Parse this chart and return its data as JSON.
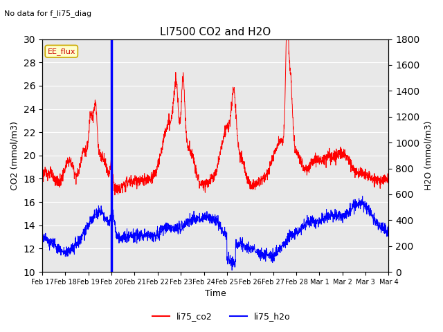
{
  "title": "LI7500 CO2 and H2O",
  "suptitle": "No data for f_li75_diag",
  "xlabel": "Time",
  "ylabel_left": "CO2 (mmol/m3)",
  "ylabel_right": "H2O (mmol/m3)",
  "ylim_left": [
    10,
    30
  ],
  "ylim_right": [
    0,
    1800
  ],
  "co2_color": "#ff0000",
  "h2o_color": "#0000ff",
  "vline_color": "#0000ff",
  "vline_x_day": 3.0,
  "legend_labels": [
    "li75_co2",
    "li75_h2o"
  ],
  "annotation_text": "EE_flux",
  "background_color": "#ffffff",
  "plot_bg_color": "#e8e8e8",
  "grid_color": "#ffffff",
  "tick_labels": [
    "Feb 17",
    "Feb 18",
    "Feb 19",
    "Feb 20",
    "Feb 21",
    "Feb 22",
    "Feb 23",
    "Feb 24",
    "Feb 25",
    "Feb 26",
    "Feb 27",
    "Feb 28",
    "Mar 1",
    "Mar 2",
    "Mar 3",
    "Mar 4"
  ],
  "figsize": [
    6.4,
    4.8
  ],
  "dpi": 100
}
